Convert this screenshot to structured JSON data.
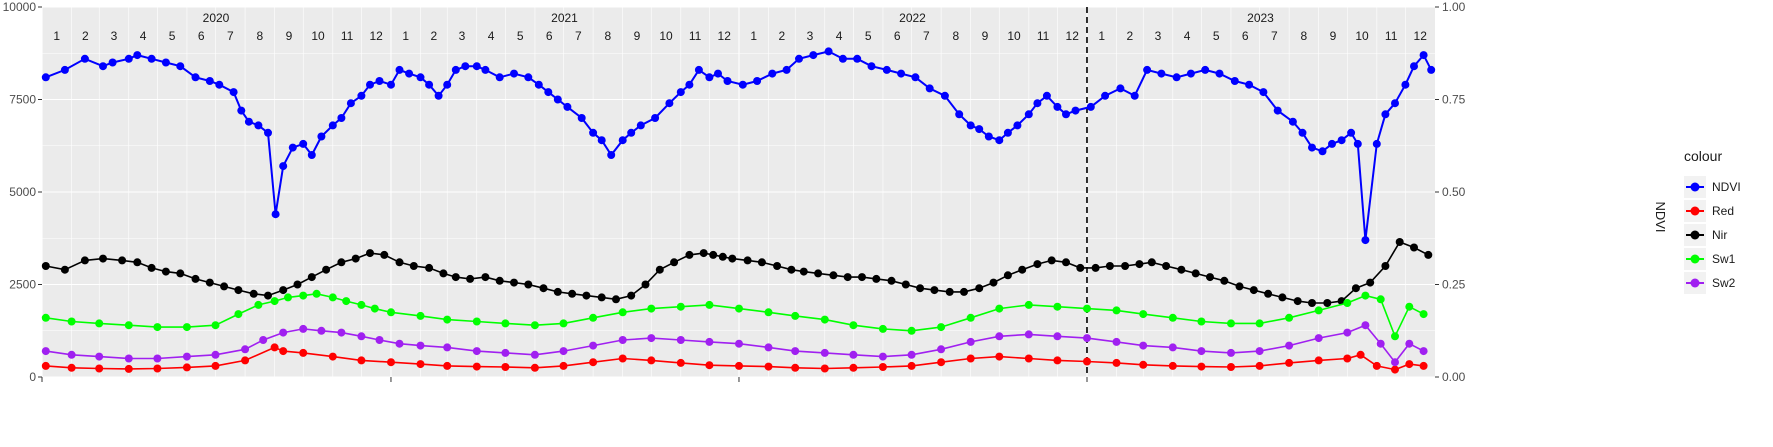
{
  "chart_data": {
    "type": "line",
    "title": "",
    "xlabel": "",
    "ylabel_left": "",
    "ylabel_right": "NDVI",
    "x_range": [
      "2020-01-01",
      "2024-01-01"
    ],
    "ylim_left": [
      0,
      10000
    ],
    "ylim_right": [
      0,
      1
    ],
    "yticks_left": [
      "0",
      "2500",
      "5000",
      "7500",
      "10000"
    ],
    "yticks_right": [
      "0.00",
      "0.25",
      "0.50",
      "0.75",
      "1.00"
    ],
    "year_labels": [
      "2020",
      "2021",
      "2022",
      "2023"
    ],
    "month_labels": [
      "1",
      "2",
      "3",
      "4",
      "5",
      "6",
      "7",
      "8",
      "9",
      "10",
      "11",
      "12"
    ],
    "vline_date": "2023-01-01",
    "grid": true,
    "legend": {
      "title": "colour",
      "position": "right"
    },
    "series": [
      {
        "name": "NDVI",
        "color": "#0000ff",
        "axis": "right",
        "x": [
          "2020-01-05",
          "2020-01-25",
          "2020-02-15",
          "2020-03-05",
          "2020-03-15",
          "2020-04-01",
          "2020-04-10",
          "2020-04-25",
          "2020-05-10",
          "2020-05-25",
          "2020-06-10",
          "2020-06-25",
          "2020-07-05",
          "2020-07-20",
          "2020-07-28",
          "2020-08-05",
          "2020-08-15",
          "2020-08-25",
          "2020-09-02",
          "2020-09-10",
          "2020-09-20",
          "2020-10-01",
          "2020-10-10",
          "2020-10-20",
          "2020-11-01",
          "2020-11-10",
          "2020-11-20",
          "2020-12-01",
          "2020-12-10",
          "2020-12-20",
          "2021-01-01",
          "2021-01-10",
          "2021-01-20",
          "2021-02-01",
          "2021-02-10",
          "2021-02-20",
          "2021-03-01",
          "2021-03-10",
          "2021-03-20",
          "2021-04-01",
          "2021-04-10",
          "2021-04-25",
          "2021-05-10",
          "2021-05-25",
          "2021-06-05",
          "2021-06-15",
          "2021-06-25",
          "2021-07-05",
          "2021-07-20",
          "2021-08-01",
          "2021-08-10",
          "2021-08-20",
          "2021-09-01",
          "2021-09-10",
          "2021-09-20",
          "2021-10-05",
          "2021-10-20",
          "2021-11-01",
          "2021-11-10",
          "2021-11-20",
          "2021-12-01",
          "2021-12-10",
          "2021-12-20",
          "2022-01-05",
          "2022-01-20",
          "2022-02-05",
          "2022-02-20",
          "2022-03-05",
          "2022-03-20",
          "2022-04-05",
          "2022-04-20",
          "2022-05-05",
          "2022-05-20",
          "2022-06-05",
          "2022-06-20",
          "2022-07-05",
          "2022-07-20",
          "2022-08-05",
          "2022-08-20",
          "2022-09-01",
          "2022-09-10",
          "2022-09-20",
          "2022-10-01",
          "2022-10-10",
          "2022-10-20",
          "2022-11-01",
          "2022-11-10",
          "2022-11-20",
          "2022-12-01",
          "2022-12-10",
          "2022-12-20",
          "2023-01-05",
          "2023-01-20",
          "2023-02-05",
          "2023-02-20",
          "2023-03-05",
          "2023-03-20",
          "2023-04-05",
          "2023-04-20",
          "2023-05-05",
          "2023-05-20",
          "2023-06-05",
          "2023-06-20",
          "2023-07-05",
          "2023-07-20",
          "2023-08-05",
          "2023-08-15",
          "2023-08-25",
          "2023-09-05",
          "2023-09-15",
          "2023-09-25",
          "2023-10-05",
          "2023-10-12",
          "2023-10-20",
          "2023-11-01",
          "2023-11-10",
          "2023-11-20",
          "2023-12-01",
          "2023-12-10",
          "2023-12-20",
          "2023-12-28"
        ],
        "values": [
          0.81,
          0.83,
          0.86,
          0.84,
          0.85,
          0.86,
          0.87,
          0.86,
          0.85,
          0.84,
          0.81,
          0.8,
          0.79,
          0.77,
          0.72,
          0.69,
          0.68,
          0.66,
          0.44,
          0.57,
          0.62,
          0.63,
          0.6,
          0.65,
          0.68,
          0.7,
          0.74,
          0.76,
          0.79,
          0.8,
          0.79,
          0.83,
          0.82,
          0.81,
          0.79,
          0.76,
          0.79,
          0.83,
          0.84,
          0.84,
          0.83,
          0.81,
          0.82,
          0.81,
          0.79,
          0.77,
          0.75,
          0.73,
          0.7,
          0.66,
          0.64,
          0.6,
          0.64,
          0.66,
          0.68,
          0.7,
          0.74,
          0.77,
          0.79,
          0.83,
          0.81,
          0.82,
          0.8,
          0.79,
          0.8,
          0.82,
          0.83,
          0.86,
          0.87,
          0.88,
          0.86,
          0.86,
          0.84,
          0.83,
          0.82,
          0.81,
          0.78,
          0.76,
          0.71,
          0.68,
          0.67,
          0.65,
          0.64,
          0.66,
          0.68,
          0.71,
          0.74,
          0.76,
          0.73,
          0.71,
          0.72,
          0.73,
          0.76,
          0.78,
          0.76,
          0.83,
          0.82,
          0.81,
          0.82,
          0.83,
          0.82,
          0.8,
          0.79,
          0.77,
          0.72,
          0.69,
          0.66,
          0.62,
          0.61,
          0.63,
          0.64,
          0.66,
          0.63,
          0.37,
          0.63,
          0.71,
          0.74,
          0.79,
          0.84,
          0.87,
          0.83
        ]
      },
      {
        "name": "Red",
        "color": "#ff0000",
        "axis": "left",
        "x": [
          "2020-01-05",
          "2020-02-01",
          "2020-03-01",
          "2020-04-01",
          "2020-05-01",
          "2020-06-01",
          "2020-07-01",
          "2020-08-01",
          "2020-09-01",
          "2020-09-10",
          "2020-10-01",
          "2020-11-01",
          "2020-12-01",
          "2021-01-01",
          "2021-02-01",
          "2021-03-01",
          "2021-04-01",
          "2021-05-01",
          "2021-06-01",
          "2021-07-01",
          "2021-08-01",
          "2021-09-01",
          "2021-10-01",
          "2021-11-01",
          "2021-12-01",
          "2022-01-01",
          "2022-02-01",
          "2022-03-01",
          "2022-04-01",
          "2022-05-01",
          "2022-06-01",
          "2022-07-01",
          "2022-08-01",
          "2022-09-01",
          "2022-10-01",
          "2022-11-01",
          "2022-12-01",
          "2023-01-01",
          "2023-02-01",
          "2023-03-01",
          "2023-04-01",
          "2023-05-01",
          "2023-06-01",
          "2023-07-01",
          "2023-08-01",
          "2023-09-01",
          "2023-10-01",
          "2023-10-15",
          "2023-11-01",
          "2023-11-20",
          "2023-12-05",
          "2023-12-20"
        ],
        "values": [
          300,
          250,
          230,
          220,
          230,
          260,
          300,
          450,
          800,
          700,
          650,
          550,
          450,
          400,
          350,
          300,
          280,
          270,
          250,
          300,
          400,
          500,
          450,
          380,
          320,
          300,
          280,
          250,
          230,
          250,
          270,
          300,
          400,
          500,
          550,
          500,
          450,
          420,
          380,
          330,
          300,
          280,
          270,
          300,
          380,
          450,
          500,
          600,
          300,
          200,
          350,
          300
        ]
      },
      {
        "name": "Nir",
        "color": "#000000",
        "axis": "left",
        "x": [
          "2020-01-05",
          "2020-01-25",
          "2020-02-15",
          "2020-03-05",
          "2020-03-25",
          "2020-04-10",
          "2020-04-25",
          "2020-05-10",
          "2020-05-25",
          "2020-06-10",
          "2020-06-25",
          "2020-07-10",
          "2020-07-25",
          "2020-08-10",
          "2020-08-25",
          "2020-09-10",
          "2020-09-25",
          "2020-10-10",
          "2020-10-25",
          "2020-11-10",
          "2020-11-25",
          "2020-12-10",
          "2020-12-25",
          "2021-01-10",
          "2021-01-25",
          "2021-02-10",
          "2021-02-25",
          "2021-03-10",
          "2021-03-25",
          "2021-04-10",
          "2021-04-25",
          "2021-05-10",
          "2021-05-25",
          "2021-06-10",
          "2021-06-25",
          "2021-07-10",
          "2021-07-25",
          "2021-08-10",
          "2021-08-25",
          "2021-09-10",
          "2021-09-25",
          "2021-10-10",
          "2021-10-25",
          "2021-11-10",
          "2021-11-25",
          "2021-12-05",
          "2021-12-15",
          "2021-12-25",
          "2022-01-10",
          "2022-01-25",
          "2022-02-10",
          "2022-02-25",
          "2022-03-10",
          "2022-03-25",
          "2022-04-10",
          "2022-04-25",
          "2022-05-10",
          "2022-05-25",
          "2022-06-10",
          "2022-06-25",
          "2022-07-10",
          "2022-07-25",
          "2022-08-10",
          "2022-08-25",
          "2022-09-10",
          "2022-09-25",
          "2022-10-10",
          "2022-10-25",
          "2022-11-10",
          "2022-11-25",
          "2022-12-10",
          "2022-12-25",
          "2023-01-10",
          "2023-01-25",
          "2023-02-10",
          "2023-02-25",
          "2023-03-10",
          "2023-03-25",
          "2023-04-10",
          "2023-04-25",
          "2023-05-10",
          "2023-05-25",
          "2023-06-10",
          "2023-06-25",
          "2023-07-10",
          "2023-07-25",
          "2023-08-10",
          "2023-08-25",
          "2023-09-10",
          "2023-09-25",
          "2023-10-10",
          "2023-10-25",
          "2023-11-10",
          "2023-11-25",
          "2023-12-10",
          "2023-12-25"
        ],
        "values": [
          3000,
          2900,
          3150,
          3200,
          3150,
          3100,
          2950,
          2850,
          2800,
          2650,
          2550,
          2450,
          2350,
          2250,
          2200,
          2350,
          2500,
          2700,
          2900,
          3100,
          3200,
          3350,
          3300,
          3100,
          3000,
          2950,
          2800,
          2700,
          2650,
          2700,
          2600,
          2550,
          2500,
          2400,
          2300,
          2250,
          2200,
          2150,
          2100,
          2200,
          2500,
          2900,
          3100,
          3300,
          3350,
          3300,
          3250,
          3200,
          3150,
          3100,
          3000,
          2900,
          2850,
          2800,
          2750,
          2700,
          2700,
          2650,
          2600,
          2500,
          2400,
          2350,
          2300,
          2300,
          2400,
          2550,
          2750,
          2900,
          3050,
          3150,
          3100,
          2950,
          2950,
          3000,
          3000,
          3050,
          3100,
          3000,
          2900,
          2800,
          2700,
          2600,
          2450,
          2350,
          2250,
          2150,
          2050,
          2000,
          2000,
          2050,
          2400,
          2550,
          3000,
          3650,
          3500,
          3300
        ]
      },
      {
        "name": "Sw1",
        "color": "#00ff00",
        "axis": "left",
        "x": [
          "2020-01-05",
          "2020-02-01",
          "2020-03-01",
          "2020-04-01",
          "2020-05-01",
          "2020-06-01",
          "2020-07-01",
          "2020-07-25",
          "2020-08-15",
          "2020-09-01",
          "2020-09-15",
          "2020-10-01",
          "2020-10-15",
          "2020-11-01",
          "2020-11-15",
          "2020-12-01",
          "2020-12-15",
          "2021-01-01",
          "2021-02-01",
          "2021-03-01",
          "2021-04-01",
          "2021-05-01",
          "2021-06-01",
          "2021-07-01",
          "2021-08-01",
          "2021-09-01",
          "2021-10-01",
          "2021-11-01",
          "2021-12-01",
          "2022-01-01",
          "2022-02-01",
          "2022-03-01",
          "2022-04-01",
          "2022-05-01",
          "2022-06-01",
          "2022-07-01",
          "2022-08-01",
          "2022-09-01",
          "2022-10-01",
          "2022-11-01",
          "2022-12-01",
          "2023-01-01",
          "2023-02-01",
          "2023-03-01",
          "2023-04-01",
          "2023-05-01",
          "2023-06-01",
          "2023-07-01",
          "2023-08-01",
          "2023-09-01",
          "2023-10-01",
          "2023-10-20",
          "2023-11-05",
          "2023-11-20",
          "2023-12-05",
          "2023-12-20"
        ],
        "values": [
          1600,
          1500,
          1450,
          1400,
          1350,
          1350,
          1400,
          1700,
          1950,
          2050,
          2150,
          2200,
          2250,
          2150,
          2050,
          1950,
          1850,
          1750,
          1650,
          1550,
          1500,
          1450,
          1400,
          1450,
          1600,
          1750,
          1850,
          1900,
          1950,
          1850,
          1750,
          1650,
          1550,
          1400,
          1300,
          1250,
          1350,
          1600,
          1850,
          1950,
          1900,
          1850,
          1800,
          1700,
          1600,
          1500,
          1450,
          1450,
          1600,
          1800,
          2000,
          2200,
          2100,
          1100,
          1900,
          1700
        ]
      },
      {
        "name": "Sw2",
        "color": "#a020f0",
        "axis": "left",
        "x": [
          "2020-01-05",
          "2020-02-01",
          "2020-03-01",
          "2020-04-01",
          "2020-05-01",
          "2020-06-01",
          "2020-07-01",
          "2020-08-01",
          "2020-08-20",
          "2020-09-10",
          "2020-10-01",
          "2020-10-20",
          "2020-11-10",
          "2020-12-01",
          "2020-12-20",
          "2021-01-10",
          "2021-02-01",
          "2021-03-01",
          "2021-04-01",
          "2021-05-01",
          "2021-06-01",
          "2021-07-01",
          "2021-08-01",
          "2021-09-01",
          "2021-10-01",
          "2021-11-01",
          "2021-12-01",
          "2022-01-01",
          "2022-02-01",
          "2022-03-01",
          "2022-04-01",
          "2022-05-01",
          "2022-06-01",
          "2022-07-01",
          "2022-08-01",
          "2022-09-01",
          "2022-10-01",
          "2022-11-01",
          "2022-12-01",
          "2023-01-01",
          "2023-02-01",
          "2023-03-01",
          "2023-04-01",
          "2023-05-01",
          "2023-06-01",
          "2023-07-01",
          "2023-08-01",
          "2023-09-01",
          "2023-10-01",
          "2023-10-20",
          "2023-11-05",
          "2023-11-20",
          "2023-12-05",
          "2023-12-20"
        ],
        "values": [
          700,
          600,
          550,
          500,
          500,
          550,
          600,
          750,
          1000,
          1200,
          1300,
          1250,
          1200,
          1100,
          1000,
          900,
          850,
          800,
          700,
          650,
          600,
          700,
          850,
          1000,
          1050,
          1000,
          950,
          900,
          800,
          700,
          650,
          600,
          550,
          600,
          750,
          950,
          1100,
          1150,
          1100,
          1050,
          950,
          850,
          800,
          700,
          650,
          700,
          850,
          1050,
          1200,
          1400,
          900,
          400,
          900,
          700
        ]
      }
    ]
  }
}
